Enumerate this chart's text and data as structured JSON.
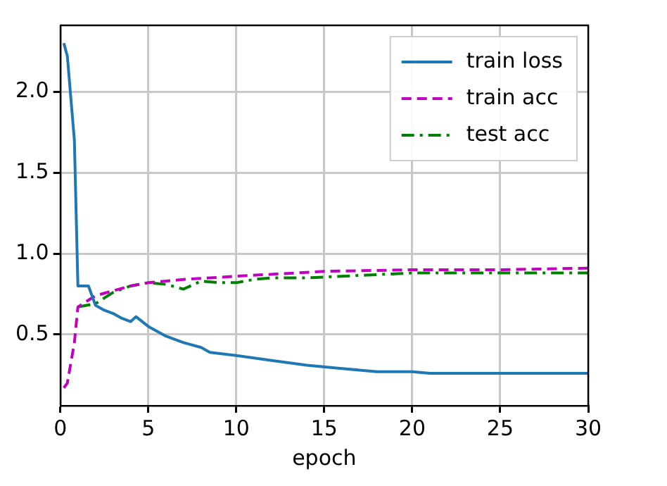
{
  "chart_data": {
    "type": "line",
    "xlabel": "epoch",
    "xlim": [
      0,
      30
    ],
    "xticks": [
      0,
      5,
      10,
      15,
      20,
      25,
      30
    ],
    "ylim": [
      0.06,
      2.41
    ],
    "yticks": [
      {
        "value": 0.5,
        "label": "0.5"
      },
      {
        "value": 1.0,
        "label": "1.0"
      },
      {
        "value": 1.5,
        "label": "1.5"
      },
      {
        "value": 2.0,
        "label": "2.0"
      }
    ],
    "grid": true,
    "legend": "top right",
    "marker": "none",
    "series": [
      {
        "name": "train loss",
        "color": "#1f77b4",
        "line_style": "solid",
        "x": [
          0.2,
          0.4,
          0.8,
          1.0,
          1.6,
          2.0,
          2.5,
          3.0,
          3.5,
          4.0,
          4.3,
          5.0,
          6.0,
          7.0,
          8.0,
          8.5,
          10.0,
          12.0,
          14.0,
          16.0,
          18.0,
          20.0,
          21.0,
          25.0,
          27.0,
          30.0
        ],
        "values": [
          2.3,
          2.22,
          1.7,
          0.8,
          0.8,
          0.68,
          0.65,
          0.63,
          0.6,
          0.58,
          0.61,
          0.55,
          0.49,
          0.45,
          0.42,
          0.39,
          0.37,
          0.34,
          0.31,
          0.29,
          0.27,
          0.27,
          0.26,
          0.26,
          0.26,
          0.26
        ]
      },
      {
        "name": "train acc",
        "color": "#bf00bf",
        "line_style": "dashed",
        "x": [
          0.2,
          0.4,
          0.8,
          1.0,
          2.0,
          3.0,
          4.0,
          5.0,
          7.0,
          10.0,
          15.0,
          20.0,
          25.0,
          30.0
        ],
        "values": [
          0.17,
          0.2,
          0.45,
          0.67,
          0.74,
          0.77,
          0.8,
          0.82,
          0.84,
          0.86,
          0.89,
          0.9,
          0.9,
          0.91
        ]
      },
      {
        "name": "test acc",
        "color": "#008000",
        "line_style": "dashdot",
        "x": [
          1,
          2,
          3,
          4,
          5,
          6,
          7,
          8,
          9,
          10,
          11,
          12,
          14,
          16,
          18,
          20,
          22,
          24,
          26,
          28,
          30
        ],
        "values": [
          0.67,
          0.69,
          0.76,
          0.8,
          0.82,
          0.81,
          0.78,
          0.83,
          0.82,
          0.82,
          0.84,
          0.85,
          0.85,
          0.86,
          0.87,
          0.88,
          0.88,
          0.88,
          0.88,
          0.88,
          0.88
        ]
      }
    ]
  }
}
